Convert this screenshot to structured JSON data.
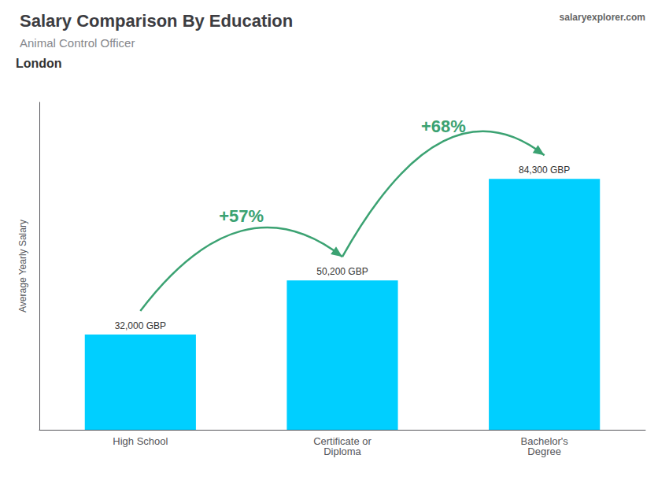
{
  "chart_data": {
    "type": "bar",
    "title": "Salary Comparison By Education",
    "subtitle": "Animal Control Officer",
    "ylabel": "Average Yearly Salary",
    "annotations": [
      "London",
      "+57%",
      "+68%",
      "salaryexplorer.com"
    ],
    "categories": [
      "High School",
      "Certificate or\nDiploma",
      "Bachelor's\nDegree"
    ],
    "values": [
      32000,
      50200,
      84300
    ],
    "value_labels": [
      "32,000 GBP",
      "50,200 GBP",
      "84,300 GBP"
    ],
    "data_labels": true,
    "color": "#00cfff",
    "ylim": [
      0,
      110000
    ],
    "grid": false,
    "tick_labels": "x"
  }
}
